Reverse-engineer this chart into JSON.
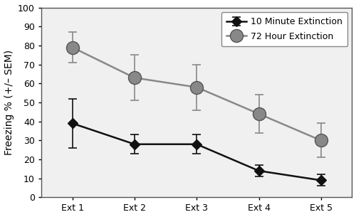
{
  "x_labels": [
    "Ext 1",
    "Ext 2",
    "Ext 3",
    "Ext 4",
    "Ext 5"
  ],
  "x_values": [
    1,
    2,
    3,
    4,
    5
  ],
  "group1_name": "10 Minute Extinction",
  "group1_values": [
    39,
    28,
    28,
    14,
    9
  ],
  "group1_sem": [
    13,
    5,
    5,
    3,
    3
  ],
  "group1_color": "#111111",
  "group1_marker": "D",
  "group1_markersize": 7,
  "group1_linewidth": 1.8,
  "group2_name": "72 Hour Extinction",
  "group2_values": [
    79,
    63,
    58,
    44,
    30
  ],
  "group2_sem": [
    8,
    12,
    12,
    10,
    9
  ],
  "group2_color": "#888888",
  "group2_marker": "o",
  "group2_markersize": 13,
  "group2_linewidth": 1.8,
  "ylabel": "Freezing % (+/– SEM)",
  "ylim": [
    0,
    100
  ],
  "yticks": [
    0,
    10,
    20,
    30,
    40,
    50,
    60,
    70,
    80,
    90,
    100
  ],
  "plot_bg_color": "#f0f0f0",
  "figure_bg_color": "#ffffff",
  "border_color": "#aaaaaa",
  "legend_fontsize": 9,
  "axis_fontsize": 10,
  "tick_fontsize": 9,
  "capsize": 4,
  "capthick": 1.2,
  "elinewidth": 1.2
}
